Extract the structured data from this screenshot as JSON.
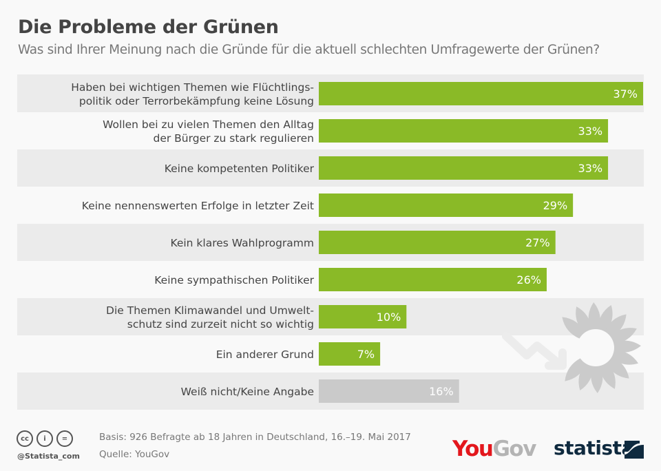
{
  "header": {
    "title": "Die Probleme der Grünen",
    "subtitle": "Was sind Ihrer Meinung nach die Gründe für die aktuell schlechten Umfragewerte der Grünen?"
  },
  "chart_data": {
    "type": "bar",
    "orientation": "horizontal",
    "title": "Die Probleme der Grünen",
    "subtitle": "Was sind Ihrer Meinung nach die Gründe für die aktuell schlechten Umfragewerte der Grünen?",
    "unit": "%",
    "categories": [
      [
        "Haben bei wichtigen Themen wie Flüchtlings-",
        "politik oder Terrorbekämpfung keine Lösung"
      ],
      [
        "Wollen bei zu vielen Themen den Alltag",
        "der Bürger zu stark regulieren"
      ],
      [
        "Keine kompetenten Politiker"
      ],
      [
        "Keine nennenswerten Erfolge in letzter Zeit"
      ],
      [
        "Kein klares Wahlprogramm"
      ],
      [
        "Keine sympathischen Politiker"
      ],
      [
        "Die Themen Klimawandel und Umwelt-",
        "schutz sind zurzeit nicht so wichtig"
      ],
      [
        "Ein anderer Grund"
      ],
      [
        "Weiß nicht/Keine Angabe"
      ]
    ],
    "values": [
      37,
      33,
      33,
      29,
      27,
      26,
      10,
      7,
      16
    ],
    "value_labels": [
      "37%",
      "33%",
      "33%",
      "29%",
      "27%",
      "26%",
      "10%",
      "7%",
      "16%"
    ],
    "bar_colors": [
      "#8aba27",
      "#8aba27",
      "#8aba27",
      "#8aba27",
      "#8aba27",
      "#8aba27",
      "#8aba27",
      "#8aba27",
      "#cacaca"
    ],
    "xlim": [
      0,
      37
    ],
    "grid": false,
    "legend": "none",
    "row_stripe_color": "#ebebeb",
    "decoration": "grey sunflower with downward trend arrow"
  },
  "footer": {
    "basis": "Basis: 926 Befragte ab 18 Jahren in Deutschland, 16.–19. Mai 2017",
    "source": "Quelle: YouGov",
    "handle": "@Statista_com",
    "cc_icons": [
      "cc-icon",
      "attribution-icon",
      "no-derivatives-icon"
    ],
    "cc_glyphs": [
      "cc",
      "i",
      "="
    ]
  },
  "logos": {
    "yougov_part1": "You",
    "yougov_part2": "Gov",
    "statista": "statista",
    "yougov_red": "#e3171d",
    "yougov_grey": "#b4b4b4",
    "statista_navy": "#0f2a3f"
  }
}
